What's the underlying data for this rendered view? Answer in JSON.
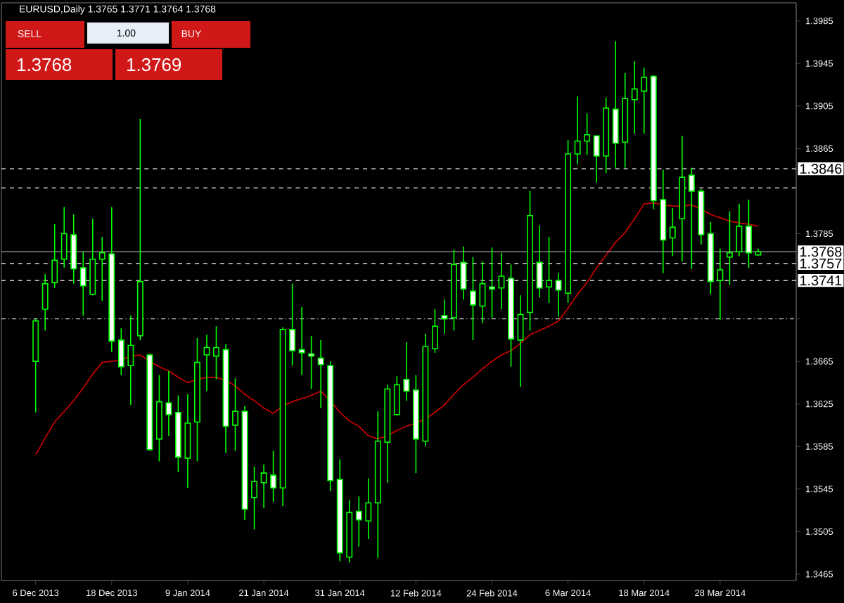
{
  "chart_data": {
    "type": "candlestick",
    "title": "EURUSD,Daily 1.3765 1.3771 1.3764 1.3768",
    "categories": [
      "6 Dec 2013",
      null,
      null,
      null,
      null,
      null,
      null,
      null,
      "18 Dec 2013",
      null,
      null,
      null,
      null,
      null,
      null,
      null,
      "9 Jan 2014",
      null,
      null,
      null,
      null,
      null,
      null,
      null,
      "21 Jan 2014",
      null,
      null,
      null,
      null,
      null,
      null,
      null,
      "31 Jan 2014",
      null,
      null,
      null,
      null,
      null,
      null,
      null,
      "12 Feb 2014",
      null,
      null,
      null,
      null,
      null,
      null,
      null,
      "24 Feb 2014",
      null,
      null,
      null,
      null,
      null,
      null,
      null,
      "6 Mar 2014",
      null,
      null,
      null,
      null,
      null,
      null,
      null,
      "18 Mar 2014",
      null,
      null,
      null,
      null,
      null,
      null,
      null,
      "28 Mar 2014",
      null,
      null,
      null,
      null
    ],
    "color": "#00ff00",
    "ohlc": [
      [
        1.3665,
        1.3705,
        1.3617,
        1.3703
      ],
      [
        1.3714,
        1.3747,
        1.3694,
        1.3738
      ],
      [
        1.3739,
        1.3794,
        1.3734,
        1.376
      ],
      [
        1.3761,
        1.381,
        1.3753,
        1.3785
      ],
      [
        1.3784,
        1.3803,
        1.3738,
        1.3752
      ],
      [
        1.3753,
        1.3768,
        1.3708,
        1.3736
      ],
      [
        1.3728,
        1.3799,
        1.3727,
        1.3761
      ],
      [
        1.3761,
        1.3782,
        1.3722,
        1.3767
      ],
      [
        1.3766,
        1.381,
        1.3674,
        1.3684
      ],
      [
        1.3685,
        1.3696,
        1.3652,
        1.366
      ],
      [
        1.3661,
        1.3708,
        1.3624,
        1.368
      ],
      [
        1.3689,
        1.3893,
        1.3685,
        1.374
      ],
      [
        1.3671,
        1.3672,
        1.3581,
        1.3582
      ],
      [
        1.3592,
        1.3652,
        1.3571,
        1.3627
      ],
      [
        1.3626,
        1.3656,
        1.3595,
        1.3615
      ],
      [
        1.3617,
        1.3633,
        1.3561,
        1.3575
      ],
      [
        1.3574,
        1.3634,
        1.3546,
        1.3607
      ],
      [
        1.3608,
        1.3687,
        1.3571,
        1.3664
      ],
      [
        1.3671,
        1.369,
        1.3637,
        1.3678
      ],
      [
        1.367,
        1.3698,
        1.3648,
        1.3678
      ],
      [
        1.3676,
        1.3681,
        1.3579,
        1.3604
      ],
      [
        1.3605,
        1.3649,
        1.3581,
        1.3618
      ],
      [
        1.3618,
        1.3623,
        1.3516,
        1.3526
      ],
      [
        1.3537,
        1.3566,
        1.3507,
        1.3552
      ],
      [
        1.3551,
        1.3568,
        1.3527,
        1.356
      ],
      [
        1.3558,
        1.3581,
        1.3533,
        1.3546
      ],
      [
        1.3546,
        1.3697,
        1.3529,
        1.3695
      ],
      [
        1.3695,
        1.3738,
        1.3661,
        1.3675
      ],
      [
        1.3676,
        1.3716,
        1.3652,
        1.3673
      ],
      [
        1.3672,
        1.3689,
        1.3639,
        1.367
      ],
      [
        1.3668,
        1.3685,
        1.3621,
        1.3662
      ],
      [
        1.3661,
        1.3665,
        1.3543,
        1.3553
      ],
      [
        1.3554,
        1.3573,
        1.3477,
        1.3485
      ],
      [
        1.3481,
        1.3535,
        1.3476,
        1.3523
      ],
      [
        1.3524,
        1.3538,
        1.3491,
        1.3516
      ],
      [
        1.3515,
        1.3555,
        1.3498,
        1.3532
      ],
      [
        1.3532,
        1.3618,
        1.348,
        1.359
      ],
      [
        1.3589,
        1.3643,
        1.3551,
        1.3639
      ],
      [
        1.3615,
        1.3651,
        1.3614,
        1.3643
      ],
      [
        1.3648,
        1.3683,
        1.3628,
        1.3637
      ],
      [
        1.3638,
        1.3652,
        1.356,
        1.3592
      ],
      [
        1.359,
        1.3691,
        1.3585,
        1.3679
      ],
      [
        1.3677,
        1.3714,
        1.3673,
        1.3698
      ],
      [
        1.3708,
        1.3723,
        1.3691,
        1.3705
      ],
      [
        1.3706,
        1.377,
        1.3694,
        1.3756
      ],
      [
        1.3758,
        1.3773,
        1.3723,
        1.3733
      ],
      [
        1.3731,
        1.3763,
        1.3685,
        1.3718
      ],
      [
        1.3717,
        1.3759,
        1.3701,
        1.3738
      ],
      [
        1.3735,
        1.3772,
        1.3706,
        1.3733
      ],
      [
        1.3734,
        1.3767,
        1.3714,
        1.3745
      ],
      [
        1.3743,
        1.3756,
        1.366,
        1.3686
      ],
      [
        1.3685,
        1.3727,
        1.3641,
        1.3709
      ],
      [
        1.3711,
        1.3825,
        1.3694,
        1.3802
      ],
      [
        1.3758,
        1.3793,
        1.3725,
        1.3734
      ],
      [
        1.3735,
        1.3782,
        1.372,
        1.3741
      ],
      [
        1.3741,
        1.3748,
        1.3707,
        1.3732
      ],
      [
        1.3729,
        1.3873,
        1.372,
        1.386
      ],
      [
        1.386,
        1.3914,
        1.385,
        1.3872
      ],
      [
        1.3872,
        1.3898,
        1.3859,
        1.3878
      ],
      [
        1.3877,
        1.3877,
        1.3833,
        1.3858
      ],
      [
        1.3858,
        1.3913,
        1.3842,
        1.3903
      ],
      [
        1.3902,
        1.3966,
        1.3847,
        1.387
      ],
      [
        1.3871,
        1.3936,
        1.3847,
        1.3912
      ],
      [
        1.3911,
        1.3947,
        1.3879,
        1.3921
      ],
      [
        1.3919,
        1.3941,
        1.3879,
        1.3932
      ],
      [
        1.3933,
        1.3934,
        1.3808,
        1.3816
      ],
      [
        1.3817,
        1.3845,
        1.3748,
        1.3779
      ],
      [
        1.3781,
        1.3809,
        1.3764,
        1.3791
      ],
      [
        1.3799,
        1.3877,
        1.3759,
        1.3838
      ],
      [
        1.384,
        1.3847,
        1.3752,
        1.3825
      ],
      [
        1.3825,
        1.3827,
        1.3775,
        1.3784
      ],
      [
        1.3785,
        1.3796,
        1.3728,
        1.374
      ],
      [
        1.3741,
        1.3771,
        1.3704,
        1.3751
      ],
      [
        1.3763,
        1.3806,
        1.3737,
        1.3767
      ],
      [
        1.3768,
        1.3813,
        1.3764,
        1.3792
      ],
      [
        1.3792,
        1.3817,
        1.3753,
        1.3767
      ],
      [
        1.3765,
        1.3771,
        1.3764,
        1.3768
      ]
    ],
    "series": [
      {
        "type": "line",
        "color": "#c00000",
        "values": [
          1.3577,
          1.3593,
          1.3608,
          1.3618,
          1.3628,
          1.364,
          1.3653,
          1.3664,
          1.3665,
          1.3666,
          1.367,
          1.3671,
          1.3665,
          1.366,
          1.3656,
          1.365,
          1.3645,
          1.3648,
          1.365,
          1.365,
          1.3647,
          1.3642,
          1.3634,
          1.3628,
          1.3621,
          1.3616,
          1.3623,
          1.3627,
          1.363,
          1.3633,
          1.3637,
          1.3628,
          1.3617,
          1.3609,
          1.3604,
          1.3595,
          1.3592,
          1.3595,
          1.36,
          1.3604,
          1.3607,
          1.3611,
          1.3617,
          1.3624,
          1.3634,
          1.3643,
          1.365,
          1.3658,
          1.3665,
          1.3671,
          1.3675,
          1.3682,
          1.369,
          1.3694,
          1.3698,
          1.3703,
          1.3715,
          1.3728,
          1.3739,
          1.3753,
          1.3765,
          1.3777,
          1.3786,
          1.3799,
          1.3813,
          1.3814,
          1.3812,
          1.3811,
          1.3811,
          1.3812,
          1.3808,
          1.3803,
          1.38,
          1.3797,
          1.3795,
          1.3794,
          1.3792
        ]
      }
    ],
    "ylim": [
      1.3459,
      1.4002
    ],
    "yticks": [
      1.3465,
      1.3505,
      1.3545,
      1.3585,
      1.3625,
      1.3665,
      {
        "value": 1.3705,
        "label": null
      },
      1.3785,
      1.3865,
      1.3905,
      1.3945,
      1.3985
    ],
    "ref_lines": [
      {
        "axis": "y",
        "value": 1.3846,
        "label": "1.3846",
        "color": "#ffffff",
        "line_style": "dashed"
      },
      {
        "axis": "y",
        "value": 1.3828,
        "label": null,
        "color": "#ffffff",
        "line_style": "dashed"
      },
      {
        "axis": "y",
        "value": 1.3768,
        "label": "1.3768",
        "color": "#a0a0a0",
        "line_style": "solid"
      },
      {
        "axis": "y",
        "value": 1.3757,
        "label": "1.3757",
        "color": "#ffffff",
        "line_style": "dashed"
      },
      {
        "axis": "y",
        "value": 1.3741,
        "label": "1.3741",
        "color": "#ffffff",
        "line_style": "dashed"
      },
      {
        "axis": "y",
        "value": 1.3705,
        "label": null,
        "color": "#c0c0c0",
        "line_style": "dashdot"
      }
    ],
    "annotations": [
      "SELL",
      "1.00",
      "BUY",
      "1.3768",
      "1.3769"
    ]
  }
}
